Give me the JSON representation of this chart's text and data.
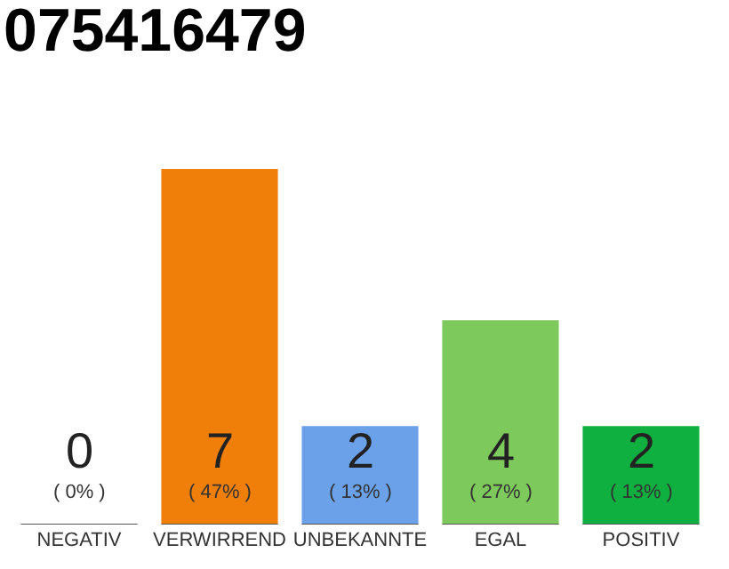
{
  "chart_data": {
    "type": "bar",
    "title": "075416479",
    "categories": [
      "NEGATIV",
      "VERWIRREND",
      "UNBEKANNTE",
      "EGAL",
      "POSITIV"
    ],
    "values": [
      0,
      47,
      13,
      27,
      13
    ],
    "colors": [
      "#9e9e9e",
      "#f07f09",
      "#6aa1e8",
      "#7ec95c",
      "#0fb040"
    ],
    "value_labels": [
      "( 0% )",
      "( 47% )",
      "( 13% )",
      "( 27% )",
      "( 13% )"
    ],
    "annotations": [
      "0",
      "7",
      "2",
      "4",
      "2"
    ],
    "tick_labels": "x",
    "grid": false
  }
}
